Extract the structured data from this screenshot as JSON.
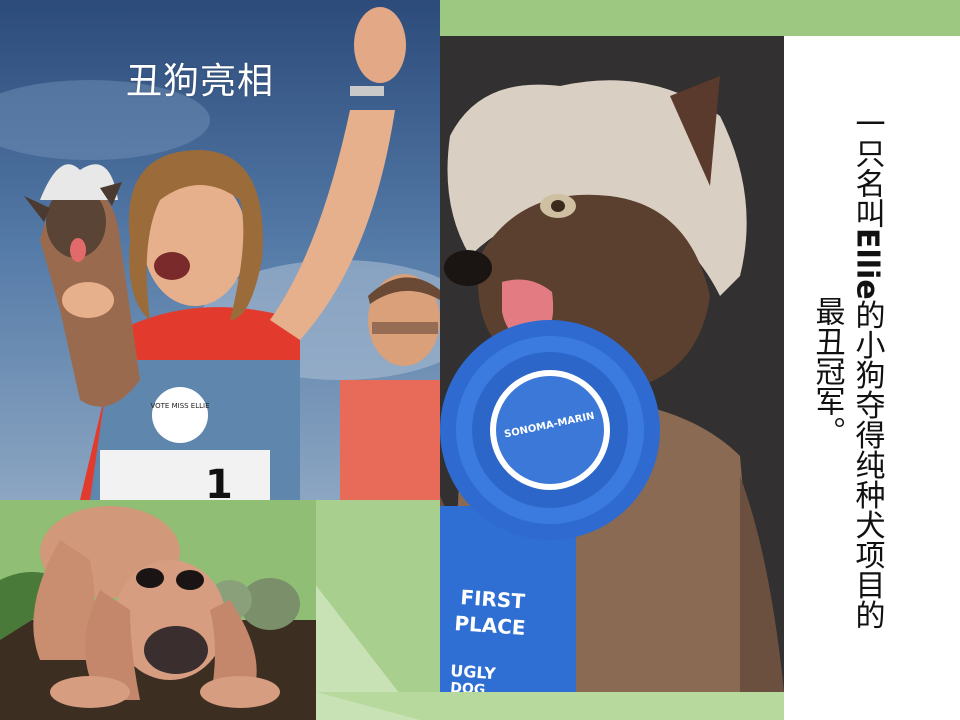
{
  "slide": {
    "title": "丑狗亮相",
    "caption": {
      "col1_pre": "一只名叫",
      "col1_name": "Ellie",
      "col1_post": "的小狗夺得纯种犬项目的",
      "col2": "最丑冠军。"
    },
    "ribbon": {
      "rosette_text": "SONOMA-MARIN",
      "line1": "FIRST",
      "line2": "PLACE",
      "line3": "UGLY",
      "line4": "DOG"
    },
    "bib_number": "1",
    "badge_text": "VOTE MISS ELLIE"
  },
  "colors": {
    "slide_green": "#a8cd8e",
    "ribbon_blue": "#2f6fd3",
    "sky_blue": "#3c5f8c"
  }
}
